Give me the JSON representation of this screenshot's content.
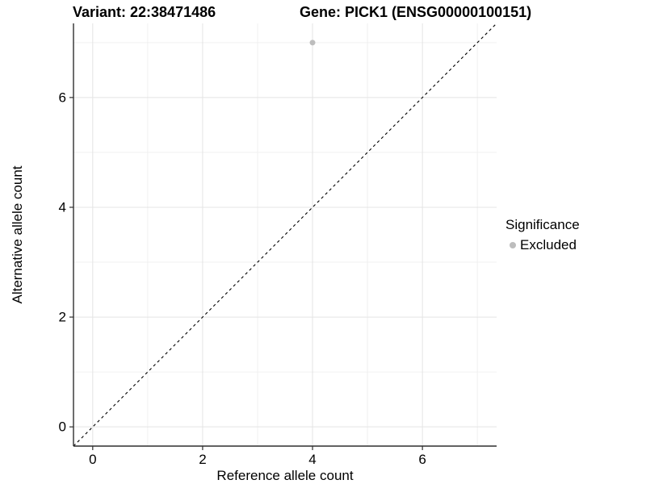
{
  "chart_data": {
    "type": "scatter",
    "titles": [
      "Variant: 22:38471486",
      "Gene: PICK1 (ENSG00000100151)"
    ],
    "xlabel": "Reference allele count",
    "ylabel": "Alternative allele count",
    "xlim": [
      -0.35,
      7.35
    ],
    "ylim": [
      -0.35,
      7.35
    ],
    "x_ticks": [
      0,
      2,
      4,
      6
    ],
    "y_ticks": [
      0,
      2,
      4,
      6
    ],
    "x_minor": [
      1,
      3,
      5,
      7
    ],
    "y_minor": [
      1,
      3,
      5,
      7
    ],
    "grid": true,
    "legend_position": "right",
    "points": [
      {
        "x": 4,
        "y": 7,
        "series": "Excluded"
      }
    ],
    "identity_line": {
      "slope": 1,
      "intercept": 0,
      "style": "dashed"
    }
  },
  "legend": {
    "title": "Significance",
    "items": [
      {
        "label": "Excluded",
        "color": "#bdbdbd"
      }
    ]
  },
  "colors": {
    "background": "#ffffff",
    "text": "#000000",
    "point_excluded": "#bdbdbd",
    "grid_major": "#e4e4e4",
    "grid_minor": "#f0f0f0",
    "axis_line": "#2f2f2f",
    "tick_mark": "#2f2f2f",
    "identity_line": "#000000"
  }
}
